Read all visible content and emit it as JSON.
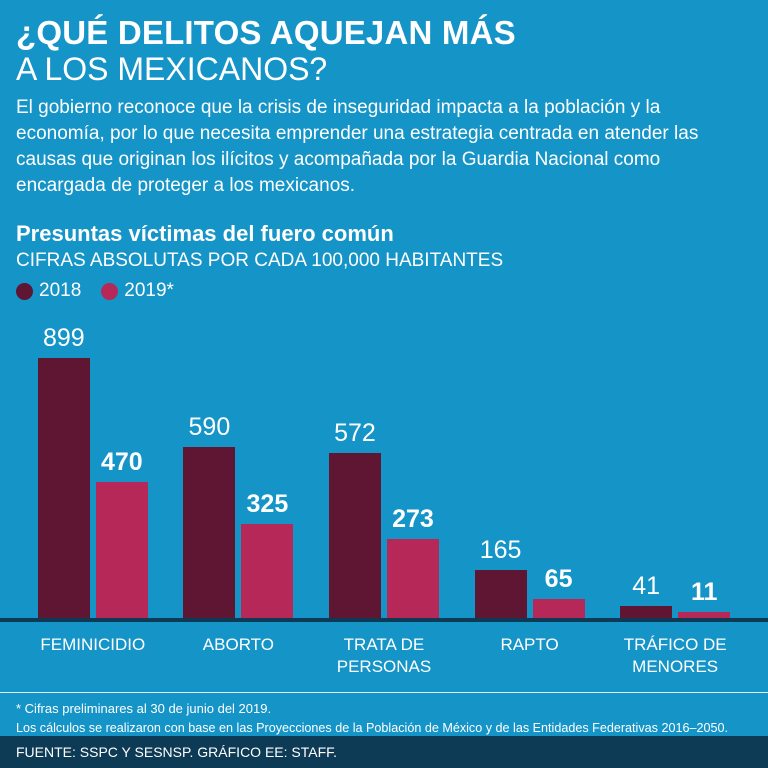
{
  "colors": {
    "background": "#1594c8",
    "bar_2018": "#5e1632",
    "bar_2019": "#b52858",
    "navy": "#0d3a54",
    "text": "#ffffff"
  },
  "header": {
    "title_line1": "¿QUÉ DELITOS AQUEJAN MÁS",
    "title_line2": "A LOS MEXICANOS?",
    "intro": "El gobierno reconoce que la crisis de inseguridad impacta a la población y la economía, por lo que necesita emprender una estrategia centrada en atender las causas que originan los ilícitos y acompañada por la Guardia Nacional como encargada de proteger a los mexicanos."
  },
  "chart": {
    "title": "Presuntas víctimas del fuero común",
    "subtitle": "CIFRAS ABSOLUTAS POR CADA 100,000 HABITANTES",
    "legend": {
      "y2018": "2018",
      "y2019": "2019*"
    }
  },
  "chart_data": {
    "type": "bar",
    "categories": [
      "FEMINICIDIO",
      "ABORTO",
      "TRATA DE\nPERSONAS",
      "RAPTO",
      "TRÁFICO DE\nMENORES"
    ],
    "series": [
      {
        "name": "2018",
        "color": "#5e1632",
        "values": [
          899,
          590,
          572,
          165,
          41
        ]
      },
      {
        "name": "2019*",
        "color": "#b52858",
        "values": [
          470,
          325,
          273,
          65,
          11
        ]
      }
    ],
    "title": "Presuntas víctimas del fuero común",
    "xlabel": "",
    "ylabel": "",
    "ylim": [
      0,
      899
    ],
    "grid": false,
    "legend_position": "top-left"
  },
  "footnotes": {
    "line1": "* Cifras preliminares al 30 de junio del 2019.",
    "line2": "Los cálculos se realizaron con base en las Proyecciones de la Población de México y de las Entidades Federativas 2016–2050."
  },
  "footer": {
    "source": "FUENTE: SSPC Y SESNSP. GRÁFICO EE: STAFF."
  }
}
